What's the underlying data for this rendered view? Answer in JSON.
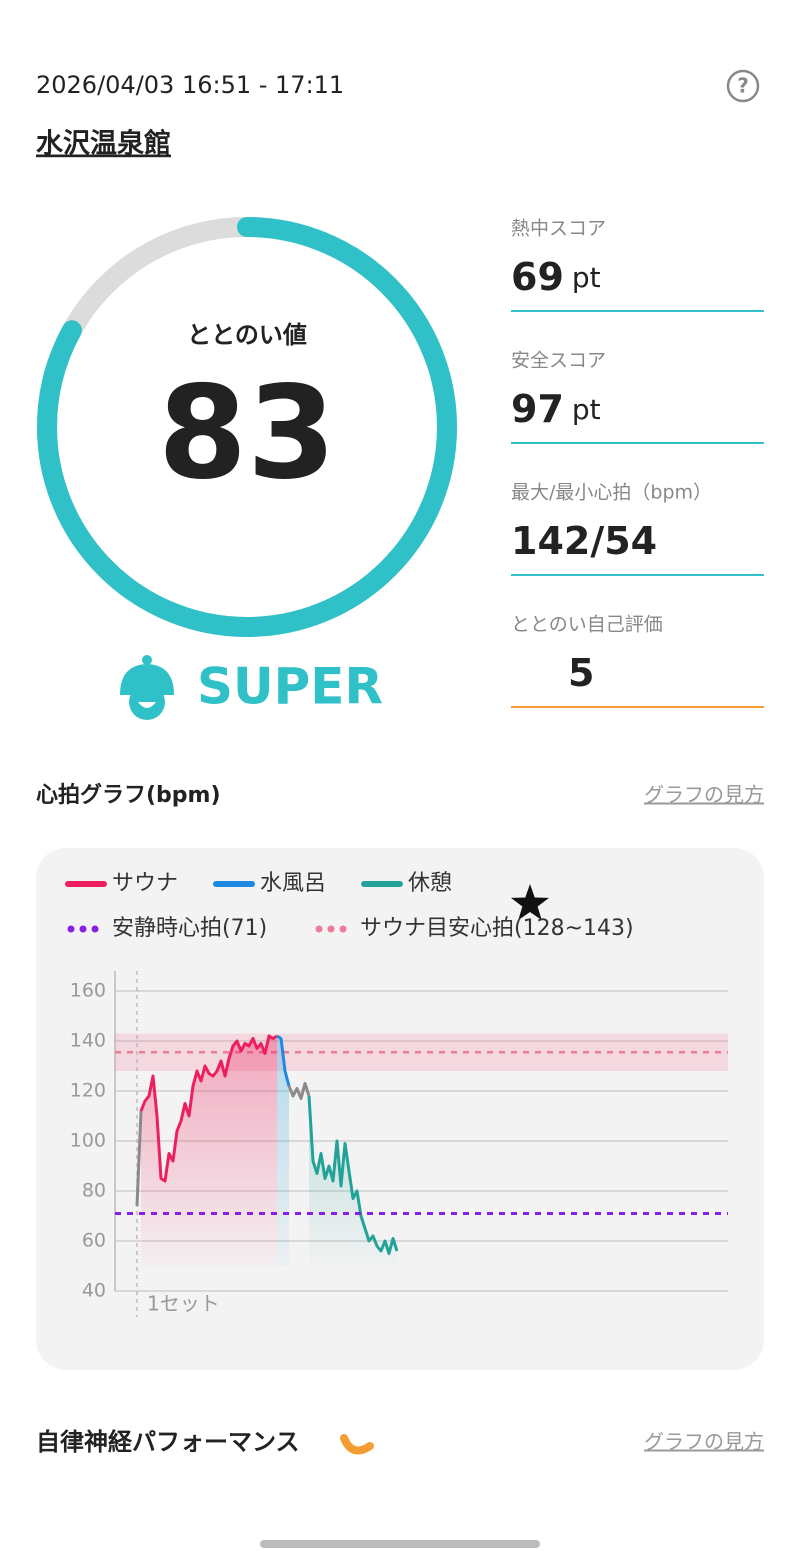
{
  "header": {
    "datetime": "2026/04/03 16:51 - 17:11",
    "help": "?",
    "facility": "水沢温泉館"
  },
  "score": {
    "label": "ととのい値",
    "value": 83,
    "rank": "SUPER",
    "color": "#2fc1c7"
  },
  "stats": [
    {
      "label": "熱中スコア",
      "value": 69,
      "unit": "pt",
      "line_color": "#2fc1c7"
    },
    {
      "label": "安全スコア",
      "value": 97,
      "unit": "pt",
      "line_color": "#2fc1c7"
    },
    {
      "label": "最大/最小心拍（bpm）",
      "value": "142/54",
      "line_color": "#2fc1c7"
    },
    {
      "label": "ととのい自己評価",
      "value": 5,
      "icon": "star",
      "line_color": "#f39c32"
    }
  ],
  "heart_section": {
    "title": "心拍グラフ(bpm)",
    "link": "グラフの見方"
  },
  "chart_data": {
    "type": "line",
    "xlim": [
      -5.5,
      147.75
    ],
    "ylim": [
      40,
      168
    ],
    "yticks": [
      40,
      60,
      80,
      100,
      120,
      140,
      160
    ],
    "grid": true,
    "sets": [
      {
        "label": "1セット",
        "x": 0
      }
    ],
    "resting_hr": {
      "label": "安静時心拍(71)",
      "value": 71,
      "color": "#8a1ee6"
    },
    "target": {
      "label": "サウナ目安心拍(128~143)",
      "low": 128,
      "high": 143,
      "color": "#f07a9a"
    },
    "series": [
      {
        "color": "#8a8a8a",
        "x": [
          0,
          1
        ],
        "values": [
          74,
          112
        ]
      },
      {
        "name": "サウナ",
        "color": "#ee1f5f",
        "shade": true,
        "x": [
          1,
          2,
          3,
          4,
          5,
          6,
          7,
          8,
          9,
          10,
          11,
          12,
          13,
          14,
          15,
          16,
          17,
          18,
          19,
          20,
          21,
          22,
          23,
          24,
          25,
          26,
          27,
          28,
          29,
          30,
          31,
          32,
          33,
          34,
          35
        ],
        "values": [
          112,
          116,
          118,
          126,
          110,
          85,
          84,
          95,
          92,
          104,
          108,
          115,
          110,
          122,
          128,
          124,
          130,
          127,
          126,
          128,
          132,
          126,
          133,
          138,
          140,
          136,
          139,
          138,
          141,
          137,
          139,
          135,
          142,
          141,
          142
        ]
      },
      {
        "name": "水風呂",
        "color": "#1e88e5",
        "shade": true,
        "x": [
          35,
          36,
          37,
          38
        ],
        "values": [
          142,
          141,
          128,
          122
        ]
      },
      {
        "color": "#8a8a8a",
        "x": [
          38,
          39,
          40,
          41,
          42,
          43
        ],
        "values": [
          122,
          118,
          121,
          117,
          123,
          118
        ]
      },
      {
        "name": "休憩",
        "color": "#22a39a",
        "shade": true,
        "x": [
          43,
          44,
          45,
          46,
          47,
          48,
          49,
          50,
          51,
          52,
          53,
          54,
          55,
          56,
          57,
          58,
          59,
          60,
          61,
          62,
          63,
          64,
          65
        ],
        "values": [
          118,
          92,
          87,
          95,
          85,
          90,
          84,
          100,
          82,
          99,
          88,
          77,
          80,
          70,
          65,
          60,
          62,
          58,
          56,
          60,
          55,
          61,
          56
        ]
      }
    ]
  },
  "autonomic_section": {
    "title": "自律神経パフォーマンス",
    "link": "グラフの見方"
  }
}
